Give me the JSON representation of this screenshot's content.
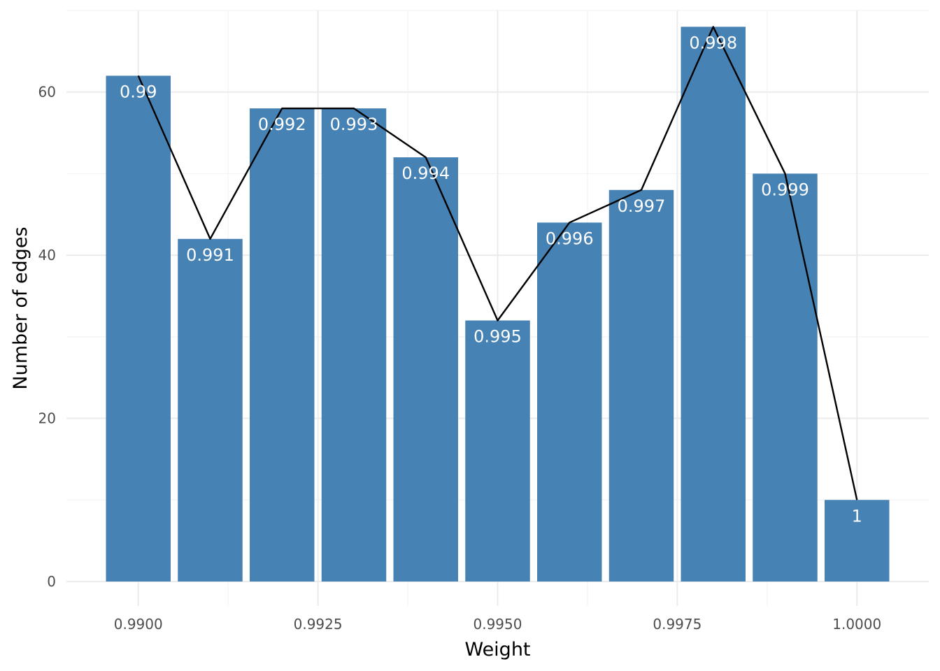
{
  "chart_data": {
    "type": "bar",
    "title": "",
    "xlabel": "Weight",
    "ylabel": "Number of edges",
    "x": [
      0.99,
      0.991,
      0.992,
      0.993,
      0.994,
      0.995,
      0.996,
      0.997,
      0.998,
      0.999,
      1.0
    ],
    "values": [
      62,
      42,
      58,
      58,
      52,
      32,
      44,
      48,
      68,
      50,
      10
    ],
    "bar_labels": [
      "0.99",
      "0.991",
      "0.992",
      "0.993",
      "0.994",
      "0.995",
      "0.996",
      "0.997",
      "0.998",
      "0.999",
      "1"
    ],
    "overlay": {
      "type": "line",
      "color": "#000000"
    },
    "bar_color": "#4682b4",
    "xlim": [
      0.989,
      1.001
    ],
    "ylim": [
      -3,
      70
    ],
    "x_ticks": [
      0.99,
      0.9925,
      0.995,
      0.9975,
      1.0
    ],
    "x_tick_labels": [
      "0.9900",
      "0.9925",
      "0.9950",
      "0.9975",
      "1.0000"
    ],
    "y_ticks": [
      0,
      20,
      40,
      60
    ],
    "y_tick_labels": [
      "0",
      "20",
      "40",
      "60"
    ],
    "grid": true,
    "legend": "none"
  }
}
